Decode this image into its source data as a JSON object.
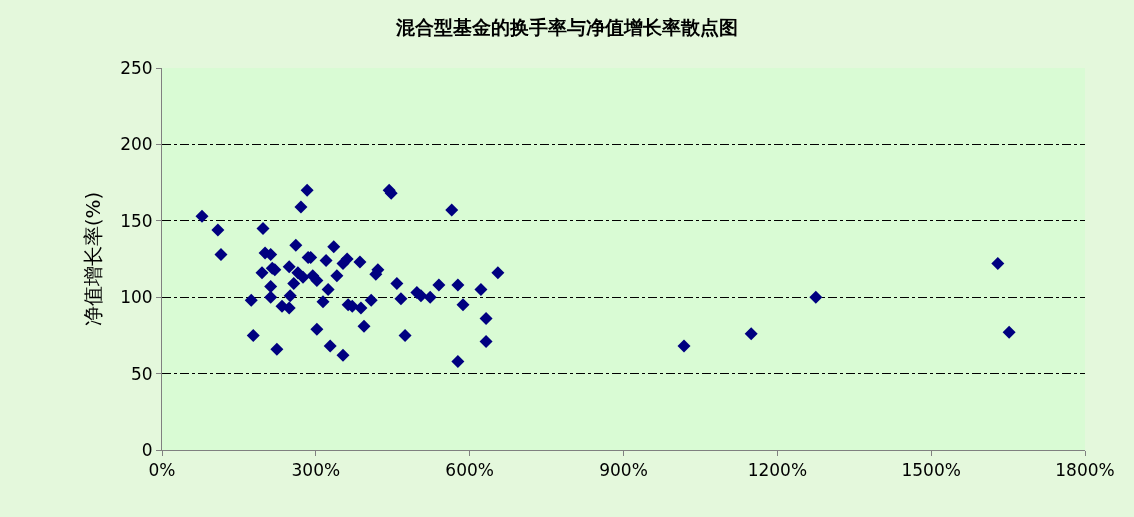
{
  "chart_data": {
    "type": "scatter",
    "title": "混合型基金的换手率与净值增长率散点图",
    "ylabel": "净值增长率(%)",
    "x": [
      78,
      109,
      115,
      174,
      178,
      197,
      201,
      195,
      212,
      215,
      212,
      212,
      224,
      220,
      234,
      248,
      248,
      250,
      257,
      261,
      271,
      265,
      275,
      283,
      285,
      290,
      294,
      302,
      302,
      314,
      320,
      324,
      328,
      335,
      341,
      353,
      361,
      353,
      363,
      371,
      386,
      388,
      394,
      408,
      417,
      421,
      443,
      447,
      458,
      466,
      474,
      497,
      505,
      523,
      540,
      565,
      577,
      577,
      587,
      622,
      632,
      632,
      655,
      1018,
      1149,
      1275,
      1630,
      1652
    ],
    "series": [
      {
        "color": "#000080",
        "values": [
          153,
          144,
          128,
          98,
          75,
          145,
          129,
          116,
          128,
          119,
          107,
          100,
          66,
          118,
          94,
          93,
          120,
          101,
          109,
          134,
          159,
          116,
          113,
          170,
          126,
          126,
          114,
          111,
          79,
          97,
          124,
          105,
          68,
          133,
          114,
          122,
          125,
          62,
          95,
          94,
          123,
          93,
          81,
          98,
          115,
          118,
          170,
          168,
          109,
          99,
          75,
          103,
          101,
          100,
          108,
          157,
          108,
          58,
          95,
          105,
          86,
          71,
          116,
          68,
          76,
          100,
          122,
          77
        ]
      }
    ],
    "xlim": [
      0,
      1800
    ],
    "xticks": [
      {
        "value": 0,
        "label": "0%"
      },
      {
        "value": 300,
        "label": "300%"
      },
      {
        "value": 600,
        "label": "600%"
      },
      {
        "value": 900,
        "label": "900%"
      },
      {
        "value": 1200,
        "label": "1200%"
      },
      {
        "value": 1500,
        "label": "1500%"
      },
      {
        "value": 1800,
        "label": "1800%"
      }
    ],
    "ylim": [
      0,
      250
    ],
    "yticks": [
      0,
      50,
      100,
      150,
      200,
      250
    ],
    "grid": "y",
    "marker": "diamond"
  }
}
